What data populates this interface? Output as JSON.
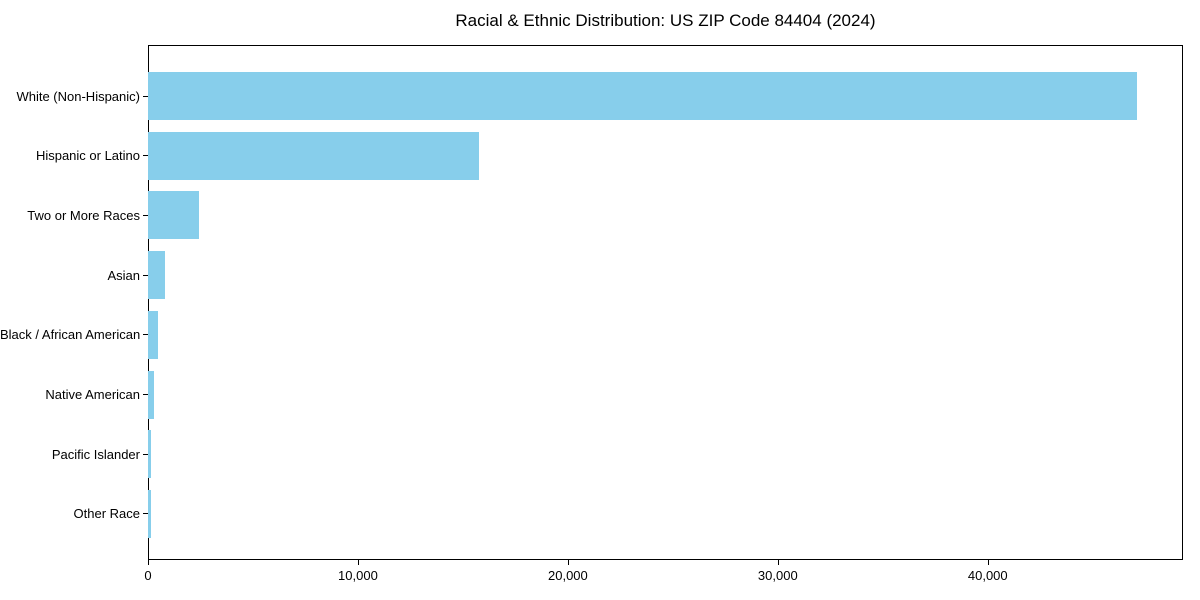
{
  "chart_data": {
    "type": "bar",
    "orientation": "horizontal",
    "title": "Racial & Ethnic Distribution: US ZIP Code 84404 (2024)",
    "categories": [
      "White (Non-Hispanic)",
      "Hispanic or Latino",
      "Two or More Races",
      "Asian",
      "Black / African American",
      "Native American",
      "Pacific Islander",
      "Other Race"
    ],
    "values": [
      47100,
      15760,
      2430,
      810,
      480,
      290,
      120,
      140
    ],
    "xlabel": "",
    "ylabel": "",
    "xlim": [
      0,
      49300
    ],
    "xticks": [
      {
        "value": 0,
        "label": "0"
      },
      {
        "value": 10000,
        "label": "10,000"
      },
      {
        "value": 20000,
        "label": "20,000"
      },
      {
        "value": 30000,
        "label": "30,000"
      },
      {
        "value": 40000,
        "label": "40,000"
      }
    ],
    "bar_color": "#87CEEB",
    "axis_color": "#000000",
    "grid": false,
    "legend": null
  }
}
